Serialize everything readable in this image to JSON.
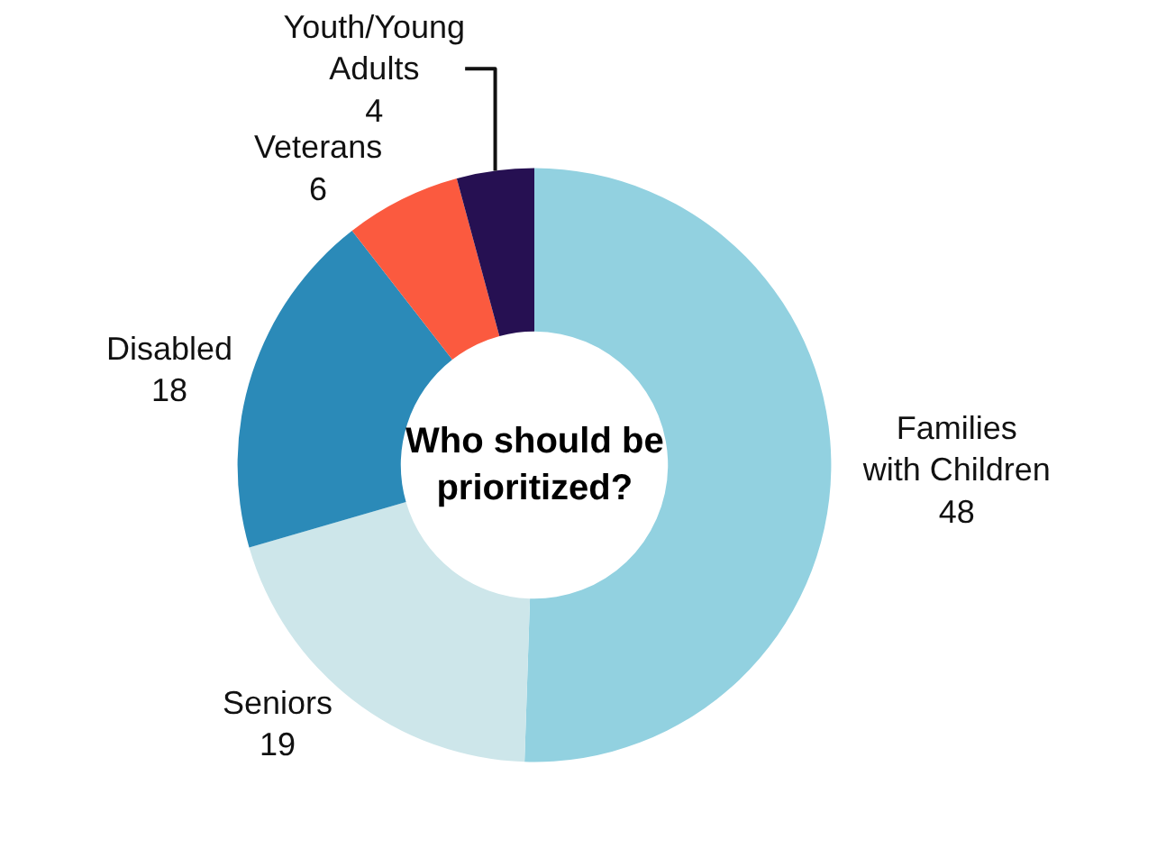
{
  "chart_data": {
    "type": "donut",
    "title": "Who should be prioritized?",
    "categories": [
      "Families with Children",
      "Seniors",
      "Disabled",
      "Veterans",
      "Youth/Young Adults"
    ],
    "values": [
      48,
      19,
      18,
      6,
      4
    ],
    "colors": [
      "#92d1e0",
      "#cde6ea",
      "#2b8ab8",
      "#fb5a3f",
      "#261052"
    ],
    "data_labels": true,
    "legend": false
  }
}
